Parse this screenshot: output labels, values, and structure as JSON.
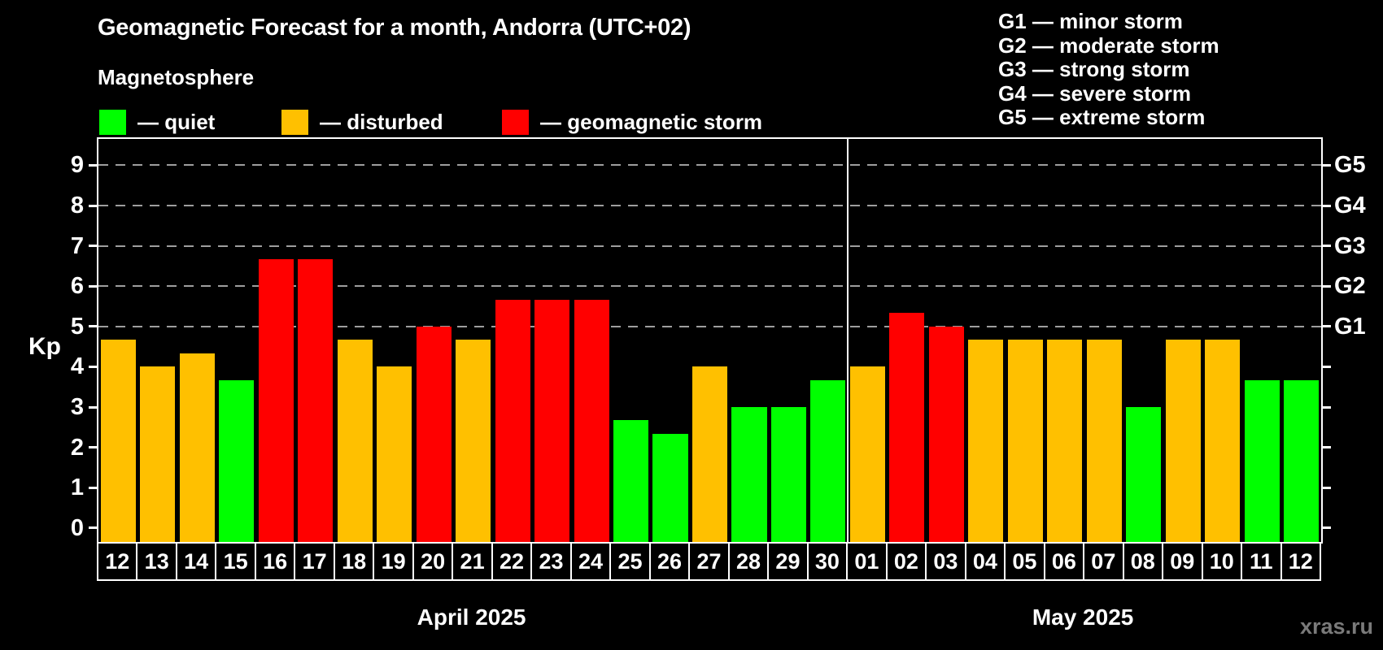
{
  "header": {
    "title": "Geomagnetic Forecast for a month, Andorra (UTC+02)",
    "subtitle": "Magnetosphere"
  },
  "legend": [
    {
      "label": "— quiet",
      "state": "quiet"
    },
    {
      "label": "— disturbed",
      "state": "disturbed"
    },
    {
      "label": "— geomagnetic storm",
      "state": "storm"
    }
  ],
  "g_legend": [
    "G1 — minor storm",
    "G2 — moderate storm",
    "G3 — strong storm",
    "G4 — severe storm",
    "G5 — extreme storm"
  ],
  "axis": {
    "kp_label": "Kp",
    "kp_ticks": [
      0,
      1,
      2,
      3,
      4,
      5,
      6,
      7,
      8,
      9
    ],
    "g_labels": [
      {
        "kp": 5,
        "label": "G1"
      },
      {
        "kp": 6,
        "label": "G2"
      },
      {
        "kp": 7,
        "label": "G3"
      },
      {
        "kp": 8,
        "label": "G4"
      },
      {
        "kp": 9,
        "label": "G5"
      }
    ]
  },
  "colors": {
    "quiet": "#00ff00",
    "disturbed": "#ffc000",
    "storm": "#ff0000",
    "frame": "#ffffff",
    "background": "#000000",
    "watermark": "#7a7a7a"
  },
  "months": [
    {
      "label": "April 2025",
      "days": 19
    },
    {
      "label": "May 2025",
      "days": 12
    }
  ],
  "watermark": "xras.ru",
  "chart_data": {
    "type": "bar",
    "title": "Geomagnetic Forecast for a month, Andorra (UTC+02)",
    "xlabel": "",
    "ylabel": "Kp",
    "ylim": [
      0,
      9.65
    ],
    "grid": "dashed horizontal at Kp 5-9 (G1-G5 storm levels)",
    "legend_position": "top-left",
    "gridlines_kp": [
      5,
      6,
      7,
      8,
      9
    ],
    "bars": [
      {
        "date": "12",
        "value": 4.67,
        "state": "disturbed"
      },
      {
        "date": "13",
        "value": 4.0,
        "state": "disturbed"
      },
      {
        "date": "14",
        "value": 4.33,
        "state": "disturbed"
      },
      {
        "date": "15",
        "value": 3.67,
        "state": "quiet"
      },
      {
        "date": "16",
        "value": 6.67,
        "state": "storm"
      },
      {
        "date": "17",
        "value": 6.67,
        "state": "storm"
      },
      {
        "date": "18",
        "value": 4.67,
        "state": "disturbed"
      },
      {
        "date": "19",
        "value": 4.0,
        "state": "disturbed"
      },
      {
        "date": "20",
        "value": 5.0,
        "state": "storm"
      },
      {
        "date": "21",
        "value": 4.67,
        "state": "disturbed"
      },
      {
        "date": "22",
        "value": 5.67,
        "state": "storm"
      },
      {
        "date": "23",
        "value": 5.67,
        "state": "storm"
      },
      {
        "date": "24",
        "value": 5.67,
        "state": "storm"
      },
      {
        "date": "25",
        "value": 2.67,
        "state": "quiet"
      },
      {
        "date": "26",
        "value": 2.33,
        "state": "quiet"
      },
      {
        "date": "27",
        "value": 4.0,
        "state": "disturbed"
      },
      {
        "date": "28",
        "value": 3.0,
        "state": "quiet"
      },
      {
        "date": "29",
        "value": 3.0,
        "state": "quiet"
      },
      {
        "date": "30",
        "value": 3.67,
        "state": "quiet"
      },
      {
        "date": "01",
        "value": 4.0,
        "state": "disturbed"
      },
      {
        "date": "02",
        "value": 5.33,
        "state": "storm"
      },
      {
        "date": "03",
        "value": 5.0,
        "state": "storm"
      },
      {
        "date": "04",
        "value": 4.67,
        "state": "disturbed"
      },
      {
        "date": "05",
        "value": 4.67,
        "state": "disturbed"
      },
      {
        "date": "06",
        "value": 4.67,
        "state": "disturbed"
      },
      {
        "date": "07",
        "value": 4.67,
        "state": "disturbed"
      },
      {
        "date": "08",
        "value": 3.0,
        "state": "quiet"
      },
      {
        "date": "09",
        "value": 4.67,
        "state": "disturbed"
      },
      {
        "date": "10",
        "value": 4.67,
        "state": "disturbed"
      },
      {
        "date": "11",
        "value": 3.67,
        "state": "quiet"
      },
      {
        "date": "12",
        "value": 3.67,
        "state": "quiet"
      }
    ]
  }
}
